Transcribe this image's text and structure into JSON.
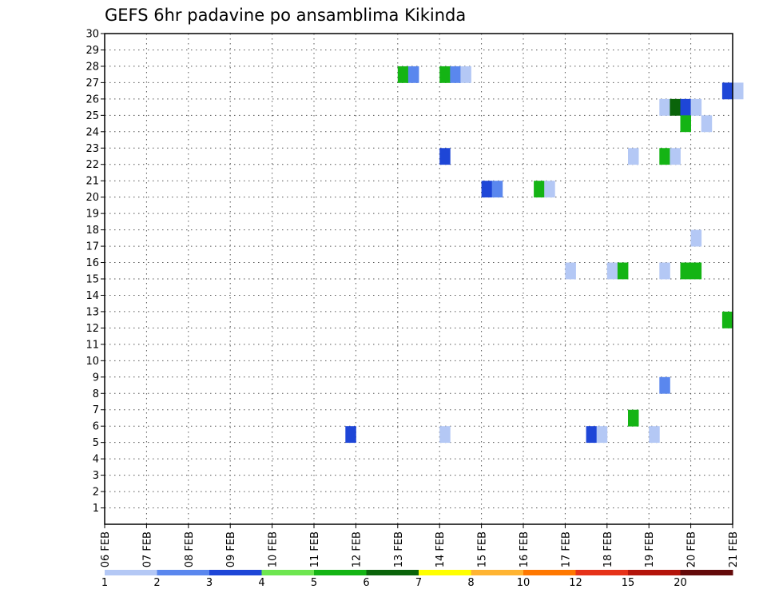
{
  "chart_data": {
    "type": "heatmap",
    "title": "GEFS 6hr padavine po ansamblima Kikinda",
    "xlabel": "",
    "ylabel": "",
    "x_range": [
      0,
      15
    ],
    "x_ticks": [
      {
        "x": 0,
        "label": "06 FEB"
      },
      {
        "x": 1,
        "label": "07 FEB"
      },
      {
        "x": 2,
        "label": "08 FEB"
      },
      {
        "x": 3,
        "label": "09 FEB"
      },
      {
        "x": 4,
        "label": "10 FEB"
      },
      {
        "x": 5,
        "label": "11 FEB"
      },
      {
        "x": 6,
        "label": "12 FEB"
      },
      {
        "x": 7,
        "label": "13 FEB"
      },
      {
        "x": 8,
        "label": "14 FEB"
      },
      {
        "x": 9,
        "label": "15 FEB"
      },
      {
        "x": 10,
        "label": "16 FEB"
      },
      {
        "x": 11,
        "label": "17 FEB"
      },
      {
        "x": 12,
        "label": "18 FEB"
      },
      {
        "x": 13,
        "label": "19 FEB"
      },
      {
        "x": 14,
        "label": "20 FEB"
      },
      {
        "x": 15,
        "label": "21 FEB"
      }
    ],
    "y_range": [
      0,
      30
    ],
    "y_ticks": [
      1,
      2,
      3,
      4,
      5,
      6,
      7,
      8,
      9,
      10,
      11,
      12,
      13,
      14,
      15,
      16,
      17,
      18,
      19,
      20,
      21,
      22,
      23,
      24,
      25,
      26,
      27,
      28,
      29,
      30
    ],
    "grid": true,
    "colorbar": {
      "labels": [
        "1",
        "2",
        "3",
        "4",
        "5",
        "6",
        "7",
        "8",
        "10",
        "12",
        "15",
        "20"
      ],
      "colors": [
        "#b4c8f5",
        "#5a87ee",
        "#1e46d7",
        "#6ee650",
        "#14b414",
        "#0a640a",
        "#ffff00",
        "#ffb432",
        "#ff7800",
        "#e63219",
        "#b4140a",
        "#640a0a"
      ]
    },
    "cells": [
      {
        "x": 7.0,
        "y": 28,
        "level": 5
      },
      {
        "x": 7.25,
        "y": 28,
        "level": 2
      },
      {
        "x": 8.0,
        "y": 28,
        "level": 5
      },
      {
        "x": 8.25,
        "y": 28,
        "level": 2
      },
      {
        "x": 8.5,
        "y": 28,
        "level": 1
      },
      {
        "x": 14.75,
        "y": 27,
        "level": 3
      },
      {
        "x": 15.0,
        "y": 27,
        "level": 1
      },
      {
        "x": 13.25,
        "y": 26,
        "level": 1
      },
      {
        "x": 13.5,
        "y": 26,
        "level": 6
      },
      {
        "x": 13.75,
        "y": 26,
        "level": 3
      },
      {
        "x": 14.0,
        "y": 26,
        "level": 1
      },
      {
        "x": 13.75,
        "y": 25,
        "level": 5
      },
      {
        "x": 14.25,
        "y": 25,
        "level": 1
      },
      {
        "x": 8.0,
        "y": 23,
        "level": 3
      },
      {
        "x": 12.5,
        "y": 23,
        "level": 1
      },
      {
        "x": 13.25,
        "y": 23,
        "level": 5
      },
      {
        "x": 13.5,
        "y": 23,
        "level": 1
      },
      {
        "x": 9.0,
        "y": 21,
        "level": 3
      },
      {
        "x": 9.25,
        "y": 21,
        "level": 2
      },
      {
        "x": 10.25,
        "y": 21,
        "level": 5
      },
      {
        "x": 10.5,
        "y": 21,
        "level": 1
      },
      {
        "x": 14.0,
        "y": 18,
        "level": 1
      },
      {
        "x": 11.0,
        "y": 16,
        "level": 1
      },
      {
        "x": 12.0,
        "y": 16,
        "level": 1
      },
      {
        "x": 12.25,
        "y": 16,
        "level": 5
      },
      {
        "x": 13.25,
        "y": 16,
        "level": 1
      },
      {
        "x": 13.75,
        "y": 16,
        "level": 5
      },
      {
        "x": 14.0,
        "y": 16,
        "level": 5
      },
      {
        "x": 14.75,
        "y": 13,
        "level": 5
      },
      {
        "x": 13.25,
        "y": 9,
        "level": 2
      },
      {
        "x": 12.5,
        "y": 7,
        "level": 5
      },
      {
        "x": 5.75,
        "y": 6,
        "level": 3
      },
      {
        "x": 8.0,
        "y": 6,
        "level": 1
      },
      {
        "x": 11.5,
        "y": 6,
        "level": 3
      },
      {
        "x": 11.75,
        "y": 6,
        "level": 1
      },
      {
        "x": 13.0,
        "y": 6,
        "level": 1
      }
    ]
  }
}
